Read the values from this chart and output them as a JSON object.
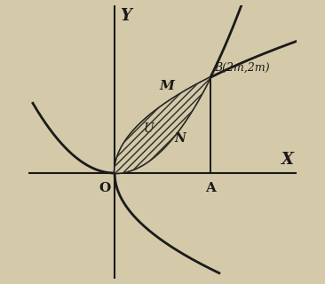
{
  "background_color": "#d4c9a8",
  "axes_color": "#1a1a1a",
  "curve_color": "#1a1a1a",
  "hatch_color": "#2a2a2a",
  "m": 1.0,
  "xlim": [
    -1.8,
    3.8
  ],
  "ylim": [
    -2.2,
    3.5
  ],
  "label_Y": "Y",
  "label_X": "X",
  "label_O": "O",
  "label_A": "A",
  "label_M": "M",
  "label_N": "N",
  "label_U": "U",
  "label_B": "B(2m,2m)",
  "axis_linewidth": 1.5,
  "curve_linewidth": 2.0,
  "figsize": [
    3.66,
    3.2
  ],
  "dpi": 100
}
